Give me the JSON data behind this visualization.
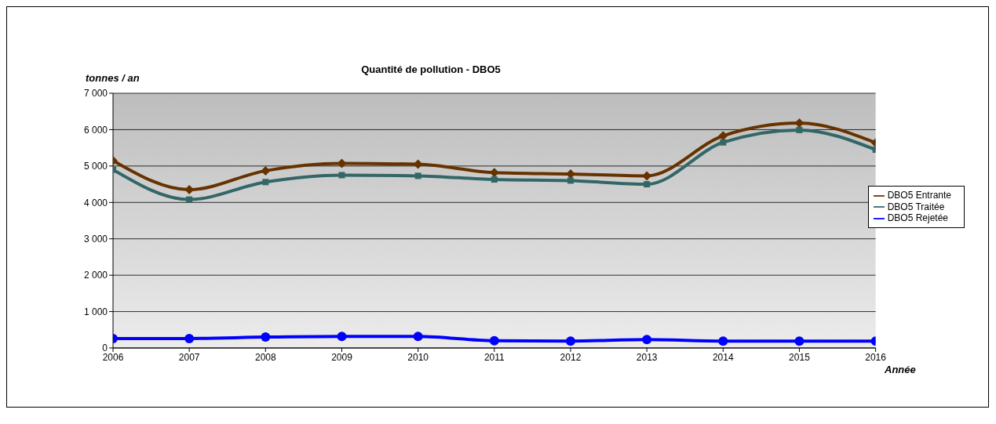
{
  "chart_data": {
    "type": "line",
    "title": "Quantité de pollution - DBO5",
    "xlabel": "Année",
    "ylabel": "tonnes / an",
    "x": [
      2006,
      2007,
      2008,
      2009,
      2010,
      2011,
      2012,
      2013,
      2014,
      2015,
      2016
    ],
    "xlim": [
      2006,
      2016
    ],
    "xticks": [
      2006,
      2007,
      2008,
      2009,
      2010,
      2011,
      2012,
      2013,
      2014,
      2015,
      2016
    ],
    "ylim": [
      0,
      7000
    ],
    "yticks": [
      0,
      {
        "value": 1000,
        "label": "1 000"
      },
      {
        "value": 2000,
        "label": "2 000"
      },
      {
        "value": 3000,
        "label": "3 000"
      },
      {
        "value": 4000,
        "label": "4 000"
      },
      {
        "value": 5000,
        "label": "5 000"
      },
      {
        "value": 6000,
        "label": "6 000"
      },
      {
        "value": 7000,
        "label": "7 000"
      }
    ],
    "grid": "y",
    "legend": "right",
    "series": [
      {
        "name": "DBO5 Entrante",
        "color": "#663300",
        "marker": "diamond",
        "values": [
          5150,
          4350,
          4870,
          5070,
          5050,
          4820,
          4780,
          4730,
          5830,
          6180,
          5640
        ]
      },
      {
        "name": "DBO5 Traitée",
        "color": "#336666",
        "marker": "square",
        "values": [
          4900,
          4080,
          4560,
          4750,
          4730,
          4630,
          4600,
          4500,
          5650,
          5990,
          5450
        ]
      },
      {
        "name": "DBO5 Rejetée",
        "color": "#0000ff",
        "marker": "circle",
        "values": [
          260,
          260,
          300,
          320,
          320,
          200,
          190,
          230,
          190,
          190,
          190
        ]
      }
    ]
  }
}
